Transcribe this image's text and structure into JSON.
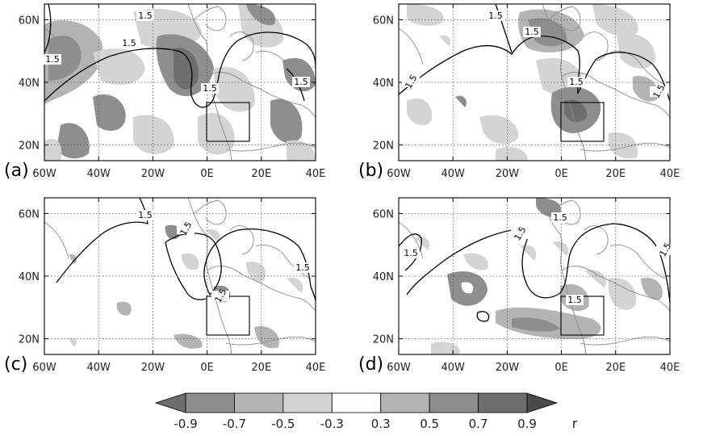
{
  "figure": {
    "x_ticks": [
      "60W",
      "40W",
      "20W",
      "0E",
      "20E",
      "40E"
    ],
    "y_ticks": [
      "20N",
      "40N",
      "60N"
    ],
    "lon_range": [
      -60,
      40
    ],
    "lat_range": [
      15,
      65
    ],
    "gridlines": "dotted",
    "box_region": {
      "lon": [
        -5,
        10
      ],
      "lat": [
        23,
        35
      ]
    },
    "contour_label": "1.5",
    "colors": {
      "light": "#d4d4d4",
      "medium": "#b4b4b4",
      "dark": "#8e8e8e",
      "darker": "#6e6e6e",
      "darkest": "#4a4a4a",
      "coast": "#8a8a8a"
    }
  },
  "panels": [
    {
      "id": "a",
      "label": "(a)"
    },
    {
      "id": "b",
      "label": "(b)"
    },
    {
      "id": "c",
      "label": "(c)"
    },
    {
      "id": "d",
      "label": "(d)"
    }
  ],
  "colorbar": {
    "ticks": [
      "-0.9",
      "-0.7",
      "-0.5",
      "-0.3",
      "0.3",
      "0.5",
      "0.7",
      "0.9"
    ],
    "unit": "r",
    "segments": [
      "#6e6e6e",
      "#8e8e8e",
      "#b4b4b4",
      "#d4d4d4",
      "#ffffff",
      "#b4b4b4",
      "#8e8e8e",
      "#6e6e6e",
      "#4a4a4a"
    ]
  }
}
